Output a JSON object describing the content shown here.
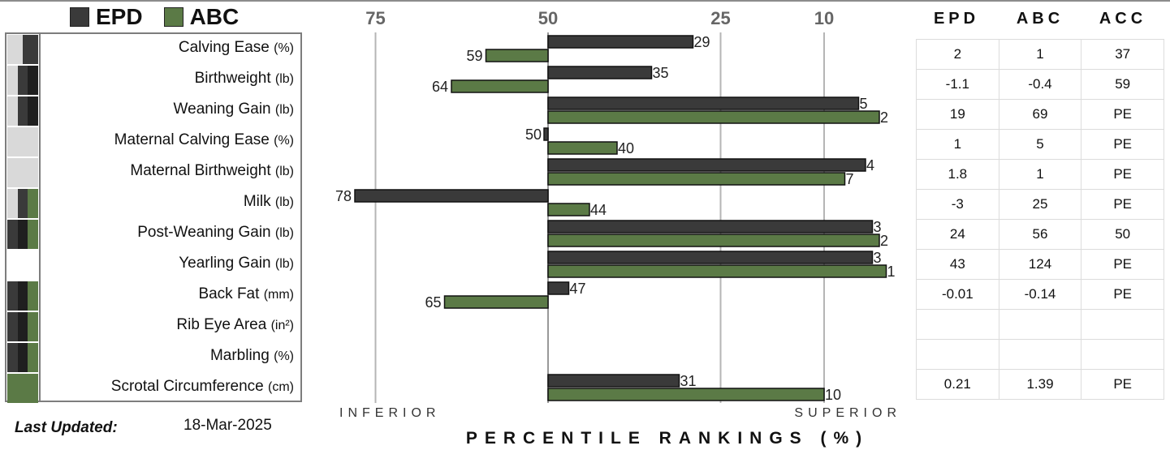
{
  "legend": [
    {
      "label": "EPD",
      "color": "#3a3a3a"
    },
    {
      "label": "ABC",
      "color": "#5b7a46"
    }
  ],
  "last_updated": {
    "label": "Last Updated:",
    "value": "18-Mar-2025"
  },
  "table": {
    "headers": [
      "EPD",
      "ABC",
      "ACC"
    ],
    "rows": [
      [
        "2",
        "1",
        "37"
      ],
      [
        "-1.1",
        "-0.4",
        "59"
      ],
      [
        "19",
        "69",
        "PE"
      ],
      [
        "1",
        "5",
        "PE"
      ],
      [
        "1.8",
        "1",
        "PE"
      ],
      [
        "-3",
        "25",
        "PE"
      ],
      [
        "24",
        "56",
        "50"
      ],
      [
        "43",
        "124",
        "PE"
      ],
      [
        "-0.01",
        "-0.14",
        "PE"
      ],
      [
        "",
        "",
        ""
      ],
      [
        "",
        "",
        ""
      ],
      [
        "0.21",
        "1.39",
        "PE"
      ]
    ]
  },
  "traits": [
    {
      "name": "Calving Ease",
      "unit": "(%)",
      "indicator": [
        "#d9d9d9",
        "#3a3a3a"
      ]
    },
    {
      "name": "Birthweight",
      "unit": "(lb)",
      "indicator": [
        "#d9d9d9",
        "#3a3a3a",
        "#1f1f1f"
      ]
    },
    {
      "name": "Weaning Gain",
      "unit": "(lb)",
      "indicator": [
        "#d9d9d9",
        "#3a3a3a",
        "#1f1f1f"
      ]
    },
    {
      "name": "Maternal Calving Ease",
      "unit": "(%)",
      "indicator": [
        "#d9d9d9"
      ]
    },
    {
      "name": "Maternal Birthweight",
      "unit": "(lb)",
      "indicator": [
        "#d9d9d9"
      ]
    },
    {
      "name": "Milk",
      "unit": "(lb)",
      "indicator": [
        "#d9d9d9",
        "#3a3a3a",
        "#5b7a46"
      ]
    },
    {
      "name": "Post-Weaning Gain",
      "unit": "(lb)",
      "indicator": [
        "#3a3a3a",
        "#1f1f1f",
        "#5b7a46"
      ]
    },
    {
      "name": "Yearling Gain",
      "unit": "(lb)",
      "indicator": [
        "#ffffff"
      ]
    },
    {
      "name": "Back Fat",
      "unit": "(mm)",
      "indicator": [
        "#3a3a3a",
        "#1f1f1f",
        "#5b7a46"
      ]
    },
    {
      "name": "Rib Eye Area",
      "unit": "(in²)",
      "indicator": [
        "#3a3a3a",
        "#1f1f1f",
        "#5b7a46"
      ]
    },
    {
      "name": "Marbling",
      "unit": "(%)",
      "indicator": [
        "#3a3a3a",
        "#1f1f1f",
        "#5b7a46"
      ]
    },
    {
      "name": "Scrotal Circumference",
      "unit": "(cm)",
      "indicator": [
        "#5b7a46"
      ]
    }
  ],
  "chart_data": {
    "type": "bar",
    "orientation": "horizontal",
    "xlabel": "PERCENTILE RANKINGS (%)",
    "x_ticks": [
      75,
      50,
      25,
      10
    ],
    "x_range": [
      80,
      0
    ],
    "x_scale": "linear-reversed",
    "annotations": {
      "left": "INFERIOR",
      "right": "SUPERIOR"
    },
    "grid": true,
    "legend_position": "top-left",
    "categories": [
      "Calving Ease",
      "Birthweight",
      "Weaning Gain",
      "Maternal Calving Ease",
      "Maternal Birthweight",
      "Milk",
      "Post-Weaning Gain",
      "Yearling Gain",
      "Back Fat",
      "Rib Eye Area",
      "Marbling",
      "Scrotal Circumference"
    ],
    "series": [
      {
        "name": "EPD",
        "color": "#3a3a3a",
        "values": [
          29,
          35,
          5,
          50,
          4,
          78,
          3,
          3,
          47,
          null,
          null,
          31
        ]
      },
      {
        "name": "ABC",
        "color": "#5b7a46",
        "values": [
          59,
          64,
          2,
          40,
          7,
          44,
          2,
          1,
          65,
          null,
          null,
          10
        ]
      }
    ]
  }
}
